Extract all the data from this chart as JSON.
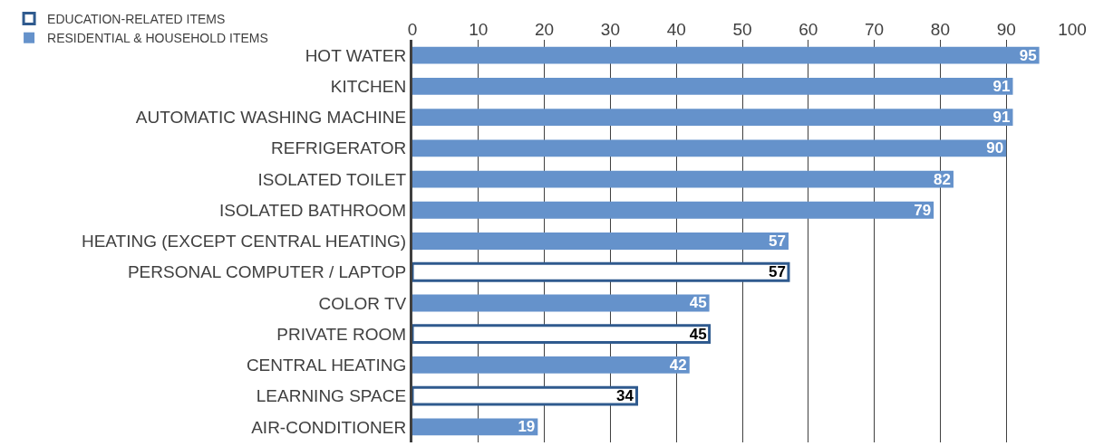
{
  "chart_data": {
    "type": "bar",
    "orientation": "horizontal",
    "categories": [
      "HOT WATER",
      "KITCHEN",
      "AUTOMATIC WASHING MACHINE",
      "REFRIGERATOR",
      "ISOLATED TOILET",
      "ISOLATED BATHROOM",
      "HEATING (EXCEPT CENTRAL HEATING)",
      "PERSONAL COMPUTER / LAPTOP",
      "COLOR TV",
      "PRIVATE ROOM",
      "CENTRAL HEATING",
      "LEARNING SPACE",
      "AIR-CONDITIONER"
    ],
    "series": [
      {
        "name": "EDUCATION-RELATED ITEMS",
        "color": "#2f5a8e",
        "values": [
          null,
          null,
          null,
          null,
          null,
          null,
          null,
          57,
          null,
          45,
          null,
          34,
          null
        ]
      },
      {
        "name": "RESIDENTIAL & HOUSEHOLD ITEMS",
        "color": "#6592cb",
        "values": [
          95,
          91,
          91,
          90,
          82,
          79,
          57,
          null,
          45,
          null,
          42,
          null,
          19
        ]
      }
    ],
    "xlim": [
      0,
      100
    ],
    "xticks": [
      0,
      10,
      20,
      30,
      40,
      50,
      60,
      70,
      80,
      90,
      100
    ],
    "grid": "x",
    "legend": "top left",
    "data_labels": true
  }
}
